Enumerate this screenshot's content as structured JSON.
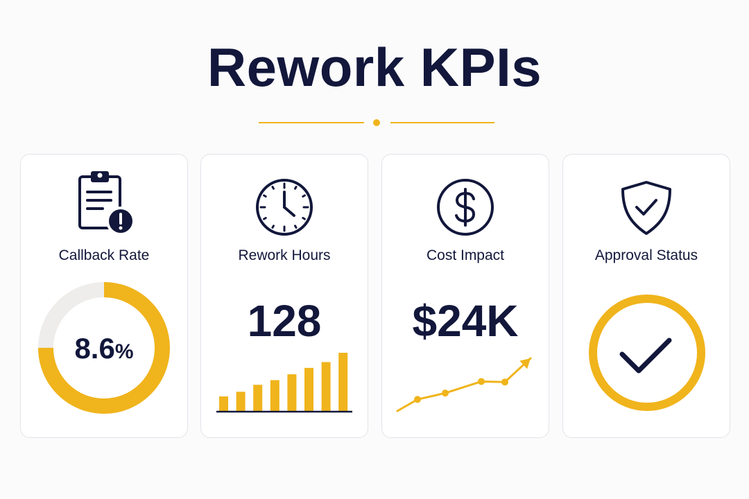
{
  "title": "Rework KPIs",
  "colors": {
    "accent": "#f0b41c",
    "navy": "#12173b",
    "track": "#eeedeb",
    "card_border": "#e3e4ea"
  },
  "cards": [
    {
      "label": "Callback Rate",
      "icon": "clipboard-alert-icon",
      "value": "8.6",
      "unit": "%",
      "gauge_fraction": 0.75
    },
    {
      "label": "Rework Hours",
      "icon": "clock-icon",
      "value": "128",
      "trend": "rising bars",
      "bar_levels": [
        0.25,
        0.33,
        0.45,
        0.53,
        0.63,
        0.74,
        0.84,
        1.0
      ]
    },
    {
      "label": "Cost Impact",
      "icon": "dollar-icon",
      "value": "$24K",
      "trend": "rising line",
      "line_levels": [
        0.0,
        0.22,
        0.34,
        0.56,
        0.55,
        1.0
      ]
    },
    {
      "label": "Approval Status",
      "icon": "shield-check-icon",
      "status_icon": "checkmark-icon"
    }
  ]
}
